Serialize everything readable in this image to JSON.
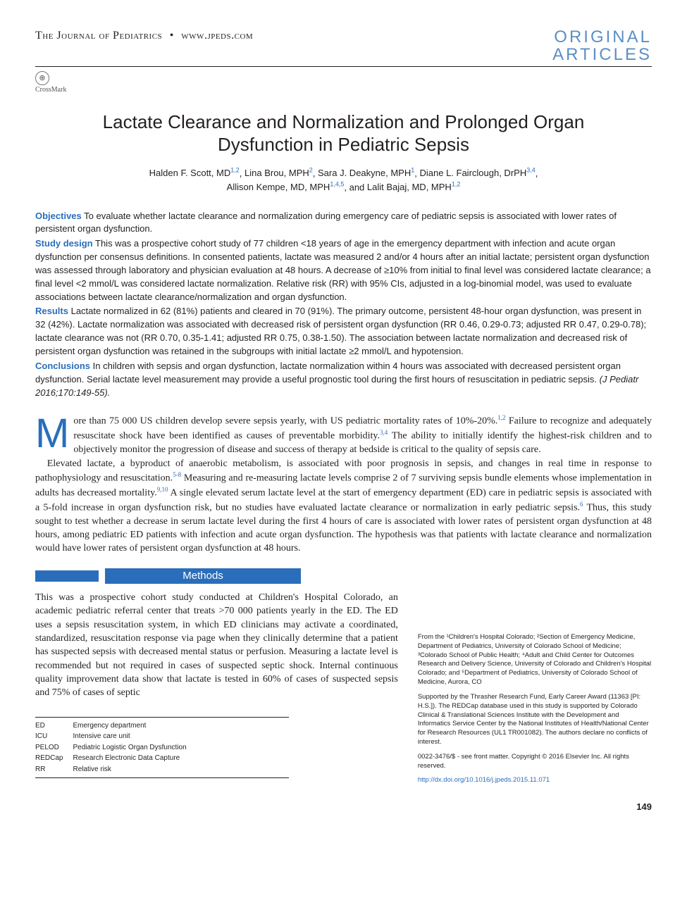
{
  "header": {
    "journal": "The Journal of Pediatrics",
    "url": "www.jpeds.com",
    "section_line1": "ORIGINAL",
    "section_line2": "ARTICLES",
    "crossmark": "CrossMark"
  },
  "title": "Lactate Clearance and Normalization and Prolonged Organ Dysfunction in Pediatric Sepsis",
  "authors": [
    {
      "name": "Halden F. Scott, MD",
      "aff": "1,2"
    },
    {
      "name": "Lina Brou, MPH",
      "aff": "2"
    },
    {
      "name": "Sara J. Deakyne, MPH",
      "aff": "1"
    },
    {
      "name": "Diane L. Fairclough, DrPH",
      "aff": "3,4"
    },
    {
      "name": "Allison Kempe, MD, MPH",
      "aff": "1,4,5"
    },
    {
      "name": "Lalit Bajaj, MD, MPH",
      "aff": "1,2"
    }
  ],
  "abstract": {
    "objectives": {
      "label": "Objectives",
      "text": "To evaluate whether lactate clearance and normalization during emergency care of pediatric sepsis is associated with lower rates of persistent organ dysfunction."
    },
    "design": {
      "label": "Study design",
      "text": "This was a prospective cohort study of 77 children <18 years of age in the emergency department with infection and acute organ dysfunction per consensus definitions. In consented patients, lactate was measured 2 and/or 4 hours after an initial lactate; persistent organ dysfunction was assessed through laboratory and physician evaluation at 48 hours. A decrease of ≥10% from initial to final level was considered lactate clearance; a final level <2 mmol/L was considered lactate normalization. Relative risk (RR) with 95% CIs, adjusted in a log-binomial model, was used to evaluate associations between lactate clearance/normalization and organ dysfunction."
    },
    "results": {
      "label": "Results",
      "text": "Lactate normalized in 62 (81%) patients and cleared in 70 (91%). The primary outcome, persistent 48-hour organ dysfunction, was present in 32 (42%). Lactate normalization was associated with decreased risk of persistent organ dysfunction (RR 0.46, 0.29-0.73; adjusted RR 0.47, 0.29-0.78); lactate clearance was not (RR 0.70, 0.35-1.41; adjusted RR 0.75, 0.38-1.50). The association between lactate normalization and decreased risk of persistent organ dysfunction was retained in the subgroups with initial lactate ≥2 mmol/L and hypotension."
    },
    "conclusions": {
      "label": "Conclusions",
      "text": "In children with sepsis and organ dysfunction, lactate normalization within 4 hours was associated with decreased persistent organ dysfunction. Serial lactate level measurement may provide a useful prognostic tool during the first hours of resuscitation in pediatric sepsis."
    },
    "citation": "(J Pediatr 2016;170:149-55)."
  },
  "body": {
    "p1a": "ore than 75 000 US children develop severe sepsis yearly, with US pediatric mortality rates of 10%-20%.",
    "p1b": " Failure to recognize and adequately resuscitate shock have been identified as causes of preventable morbidity.",
    "p1c": " The ability to initially identify the highest-risk children and to objectively monitor the progression of disease and success of therapy at bedside is critical to the quality of sepsis care.",
    "p2a": "Elevated lactate, a byproduct of anaerobic metabolism, is associated with poor prognosis in sepsis, and changes in real time in response to pathophysiology and resuscitation.",
    "p2b": " Measuring and re-measuring lactate levels comprise 2 of 7 surviving sepsis bundle elements whose implementation in adults has decreased mortality.",
    "p2c": " A single elevated serum lactate level at the start of emergency department (ED) care in pediatric sepsis is associated with a 5-fold increase in organ dysfunction risk, but no studies have evaluated lactate clearance or normalization in early pediatric sepsis.",
    "p2d": " Thus, this study sought to test whether a decrease in serum lactate level during the first 4 hours of care is associated with lower rates of persistent organ dysfunction at 48 hours, among pediatric ED patients with infection and acute organ dysfunction. The hypothesis was that patients with lactate clearance and normalization would have lower rates of persistent organ dysfunction at 48 hours.",
    "refs": {
      "r1": "1,2",
      "r2": "3,4",
      "r3": "5-8",
      "r4": "9,10",
      "r5": "6"
    }
  },
  "methods": {
    "heading": "Methods",
    "p1": "This was a prospective cohort study conducted at Children's Hospital Colorado, an academic pediatric referral center that treats >70 000 patients yearly in the ED. The ED uses a sepsis resuscitation system, in which ED clinicians may activate a coordinated, standardized, resuscitation response via page when they clinically determine that a patient has suspected sepsis with decreased mental status or perfusion. Measuring a lactate level is recommended but not required in cases of suspected septic shock. Internal continuous quality improvement data show that lactate is tested in 60% of cases of suspected sepsis and 75% of cases of septic"
  },
  "abbreviations": [
    {
      "k": "ED",
      "v": "Emergency department"
    },
    {
      "k": "ICU",
      "v": "Intensive care unit"
    },
    {
      "k": "PELOD",
      "v": "Pediatric Logistic Organ Dysfunction"
    },
    {
      "k": "REDCap",
      "v": "Research Electronic Data Capture"
    },
    {
      "k": "RR",
      "v": "Relative risk"
    }
  ],
  "affiliations": "From the ¹Children's Hospital Colorado; ²Section of Emergency Medicine, Department of Pediatrics, University of Colorado School of Medicine; ³Colorado School of Public Health; ⁴Adult and Child Center for Outcomes Research and Delivery Science, University of Colorado and Children's Hospital Colorado; and ⁵Department of Pediatrics, University of Colorado School of Medicine, Aurora, CO",
  "funding": "Supported by the Thrasher Research Fund, Early Career Award (11363 [PI: H.S.]). The REDCap database used in this study is supported by Colorado Clinical & Translational Sciences Institute with the Development and Informatics Service Center by the National Institutes of Health/National Center for Research Resources (UL1 TR001082). The authors declare no conflicts of interest.",
  "copyright": "0022-3476/$ - see front matter. Copyright © 2016 Elsevier Inc. All rights reserved.",
  "doi": "http://dx.doi.org/10.1016/j.jpeds.2015.11.071",
  "page": "149",
  "colors": {
    "accent": "#2a6ebb",
    "section_label": "#5b8fc7",
    "text": "#231f20"
  }
}
